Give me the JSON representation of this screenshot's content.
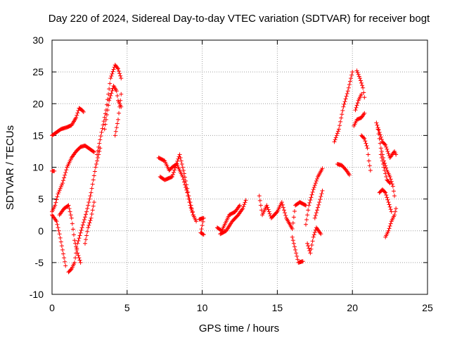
{
  "chart_data": {
    "type": "scatter",
    "title": "Day 220 of 2024, Sidereal Day-to-day VTEC variation (SDTVAR) for receiver bogt",
    "xlabel": "GPS time / hours",
    "ylabel": "SDTVAR / TECUs",
    "xlim": [
      0,
      25
    ],
    "ylim": [
      -10,
      30
    ],
    "xticks": [
      0,
      5,
      10,
      15,
      20,
      25
    ],
    "yticks": [
      -10,
      -5,
      0,
      5,
      10,
      15,
      20,
      25,
      30
    ],
    "grid": true,
    "marker": "+",
    "color": "#ff0000",
    "series": [
      {
        "values": [
          [
            0.0,
            15.0
          ],
          [
            0.3,
            15.5
          ],
          [
            0.6,
            16.0
          ],
          [
            1.0,
            16.3
          ],
          [
            1.3,
            16.6
          ],
          [
            1.6,
            17.8
          ],
          [
            1.8,
            19.3
          ],
          [
            2.0,
            19.0
          ],
          [
            2.1,
            18.7
          ]
        ]
      },
      {
        "values": [
          [
            0.0,
            9.4
          ],
          [
            0.15,
            9.4
          ]
        ]
      },
      {
        "values": [
          [
            0.0,
            3.0
          ],
          [
            0.2,
            4.0
          ],
          [
            0.4,
            5.8
          ],
          [
            0.7,
            7.5
          ],
          [
            1.0,
            10.0
          ],
          [
            1.3,
            11.5
          ],
          [
            1.6,
            12.5
          ],
          [
            1.9,
            13.2
          ],
          [
            2.2,
            13.4
          ],
          [
            2.5,
            12.9
          ],
          [
            2.8,
            12.4
          ]
        ]
      },
      {
        "values": [
          [
            0.0,
            2.5
          ],
          [
            0.3,
            1.5
          ],
          [
            0.5,
            -0.5
          ],
          [
            0.7,
            -3.0
          ],
          [
            0.9,
            -5.5
          ]
        ]
      },
      {
        "values": [
          [
            0.5,
            2.5
          ],
          [
            0.8,
            3.5
          ],
          [
            1.1,
            4.0
          ],
          [
            1.3,
            2.0
          ],
          [
            1.5,
            -1.5
          ],
          [
            1.7,
            -3.5
          ],
          [
            1.9,
            -5.0
          ]
        ]
      },
      {
        "values": [
          [
            1.1,
            -6.5
          ],
          [
            1.3,
            -6.0
          ],
          [
            1.5,
            -5.0
          ],
          [
            1.7,
            -2.0
          ],
          [
            2.0,
            0.5
          ],
          [
            2.3,
            3.0
          ],
          [
            2.6,
            6.0
          ],
          [
            2.9,
            10.0
          ],
          [
            3.2,
            13.0
          ]
        ]
      },
      {
        "values": [
          [
            2.2,
            -2.0
          ],
          [
            2.4,
            0.5
          ],
          [
            2.6,
            2.0
          ],
          [
            2.8,
            4.5
          ]
        ]
      },
      {
        "values": [
          [
            3.0,
            12.0
          ],
          [
            3.3,
            15.5
          ],
          [
            3.6,
            19.0
          ],
          [
            3.9,
            24.0
          ],
          [
            4.2,
            26.1
          ],
          [
            4.4,
            25.5
          ],
          [
            4.6,
            24.0
          ]
        ]
      },
      {
        "values": [
          [
            3.5,
            16.0
          ],
          [
            3.8,
            20.5
          ],
          [
            4.1,
            22.8
          ],
          [
            4.3,
            22.0
          ],
          [
            4.4,
            20.5
          ],
          [
            4.6,
            19.5
          ]
        ]
      },
      {
        "values": [
          [
            4.2,
            15.0
          ],
          [
            4.4,
            17.5
          ],
          [
            4.6,
            21.5
          ]
        ]
      },
      {
        "values": [
          [
            7.1,
            11.5
          ],
          [
            7.5,
            11.0
          ],
          [
            7.8,
            9.5
          ],
          [
            8.0,
            10.0
          ],
          [
            8.3,
            10.5
          ],
          [
            8.7,
            8.5
          ],
          [
            9.0,
            6.0
          ],
          [
            9.2,
            4.0
          ],
          [
            9.4,
            2.5
          ]
        ]
      },
      {
        "values": [
          [
            7.2,
            8.5
          ],
          [
            7.5,
            8.0
          ],
          [
            8.0,
            8.5
          ],
          [
            8.5,
            12.0
          ],
          [
            8.8,
            9.0
          ],
          [
            9.1,
            5.5
          ],
          [
            9.4,
            2.5
          ],
          [
            9.6,
            1.5
          ]
        ]
      },
      {
        "values": [
          [
            9.8,
            1.8
          ],
          [
            10.1,
            2.0
          ],
          [
            9.9,
            -0.3
          ],
          [
            10.1,
            -0.6
          ]
        ]
      },
      {
        "values": [
          [
            11.0,
            0.5
          ],
          [
            11.3,
            0.0
          ],
          [
            11.5,
            1.0
          ],
          [
            11.8,
            2.5
          ],
          [
            12.2,
            3.0
          ],
          [
            12.5,
            4.0
          ]
        ]
      },
      {
        "values": [
          [
            11.2,
            -0.5
          ],
          [
            11.6,
            0.0
          ],
          [
            12.0,
            1.5
          ],
          [
            12.4,
            2.5
          ],
          [
            12.7,
            3.5
          ],
          [
            12.9,
            4.8
          ]
        ]
      },
      {
        "values": [
          [
            13.8,
            5.5
          ],
          [
            14.0,
            2.5
          ],
          [
            14.3,
            4.0
          ],
          [
            14.6,
            2.0
          ],
          [
            15.0,
            3.0
          ],
          [
            15.3,
            4.5
          ],
          [
            15.6,
            2.0
          ],
          [
            16.0,
            0.3
          ],
          [
            16.2,
            4.0
          ],
          [
            16.5,
            4.5
          ],
          [
            16.9,
            4.0
          ]
        ]
      },
      {
        "values": [
          [
            16.0,
            -1.0
          ],
          [
            16.2,
            -3.0
          ],
          [
            16.4,
            -5.0
          ],
          [
            16.7,
            -4.8
          ]
        ]
      },
      {
        "values": [
          [
            17.0,
            -2.0
          ],
          [
            17.2,
            -3.5
          ],
          [
            17.4,
            -1.0
          ],
          [
            17.6,
            0.5
          ],
          [
            17.9,
            -0.5
          ]
        ]
      },
      {
        "values": [
          [
            16.9,
            1.0
          ],
          [
            17.1,
            4.0
          ],
          [
            17.4,
            6.5
          ],
          [
            17.7,
            8.5
          ],
          [
            18.0,
            9.8
          ]
        ]
      },
      {
        "values": [
          [
            17.5,
            2.0
          ],
          [
            17.8,
            4.5
          ],
          [
            18.0,
            6.3
          ]
        ]
      },
      {
        "values": [
          [
            19.0,
            10.5
          ],
          [
            19.3,
            10.3
          ],
          [
            19.6,
            9.5
          ],
          [
            19.8,
            8.8
          ]
        ]
      },
      {
        "values": [
          [
            18.8,
            14.0
          ],
          [
            19.1,
            16.0
          ],
          [
            19.4,
            19.5
          ],
          [
            19.7,
            22.0
          ],
          [
            19.9,
            24.0
          ],
          [
            20.0,
            25.0
          ]
        ]
      },
      {
        "values": [
          [
            20.3,
            25.2
          ],
          [
            20.5,
            24.0
          ],
          [
            20.7,
            22.5
          ],
          [
            20.8,
            21.0
          ]
        ]
      },
      {
        "values": [
          [
            20.1,
            16.5
          ],
          [
            20.3,
            17.5
          ],
          [
            20.6,
            17.8
          ],
          [
            20.8,
            18.5
          ]
        ]
      },
      {
        "values": [
          [
            20.2,
            19.0
          ],
          [
            20.4,
            20.5
          ],
          [
            20.6,
            21.5
          ]
        ]
      },
      {
        "values": [
          [
            20.6,
            15.0
          ],
          [
            20.8,
            14.5
          ],
          [
            21.0,
            13.0
          ],
          [
            21.1,
            11.0
          ],
          [
            21.2,
            9.5
          ]
        ]
      },
      {
        "values": [
          [
            21.6,
            17.0
          ],
          [
            21.8,
            15.5
          ],
          [
            22.0,
            14.0
          ],
          [
            22.2,
            13.5
          ],
          [
            22.5,
            11.5
          ],
          [
            22.8,
            12.5
          ],
          [
            22.9,
            12.0
          ]
        ]
      },
      {
        "values": [
          [
            21.7,
            16.0
          ],
          [
            21.9,
            13.0
          ],
          [
            22.1,
            11.0
          ],
          [
            22.3,
            9.5
          ],
          [
            22.5,
            8.5
          ],
          [
            22.7,
            7.0
          ],
          [
            22.8,
            5.5
          ]
        ]
      },
      {
        "values": [
          [
            21.9,
            12.0
          ],
          [
            22.1,
            10.0
          ],
          [
            22.3,
            8.0
          ],
          [
            22.5,
            7.5
          ]
        ]
      },
      {
        "values": [
          [
            21.8,
            6.0
          ],
          [
            22.0,
            6.5
          ],
          [
            22.2,
            6.0
          ],
          [
            22.4,
            4.5
          ],
          [
            22.6,
            3.0
          ]
        ]
      },
      {
        "values": [
          [
            22.2,
            -1.0
          ],
          [
            22.4,
            0.0
          ],
          [
            22.6,
            1.5
          ],
          [
            22.8,
            2.5
          ],
          [
            22.9,
            3.5
          ]
        ]
      }
    ]
  }
}
